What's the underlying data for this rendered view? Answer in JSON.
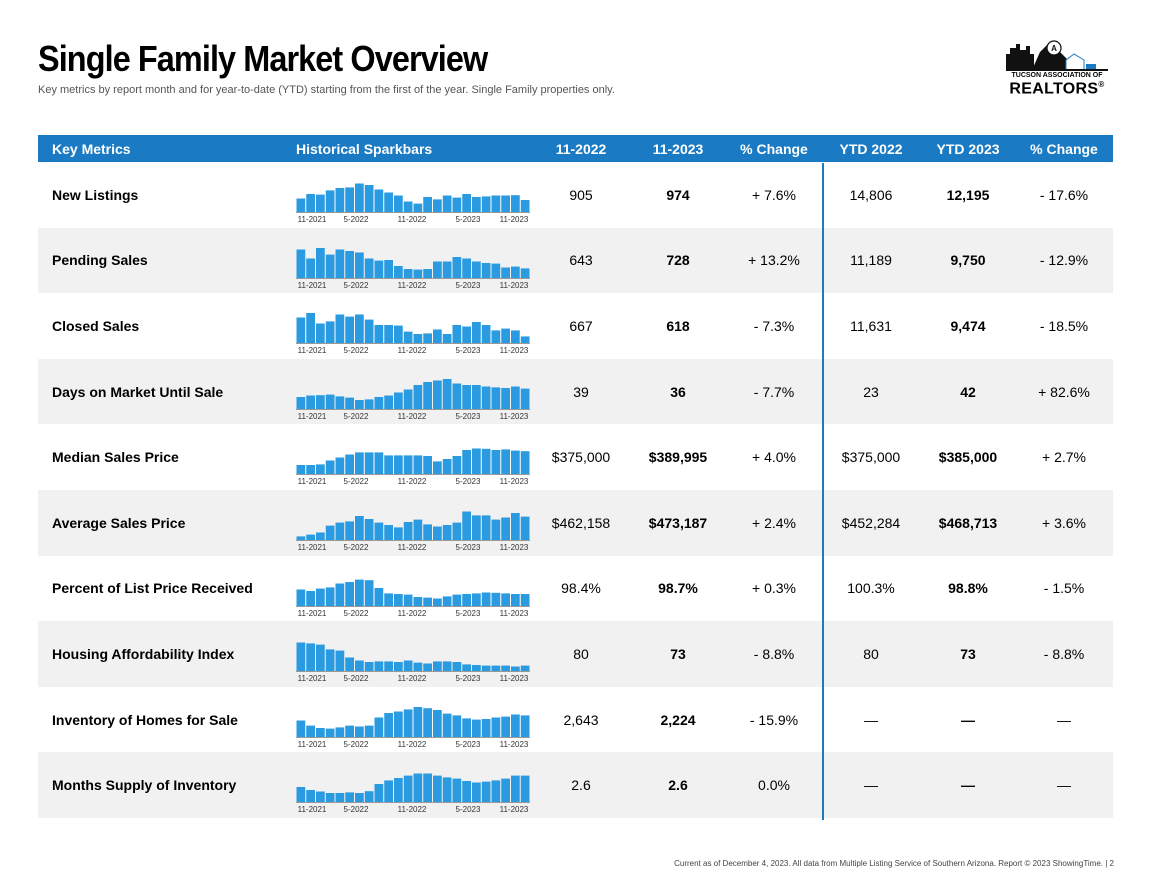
{
  "header": {
    "title": "Single Family Market Overview",
    "subtitle": "Key metrics by report month and for year-to-date (YTD) starting from the first of the year. Single Family properties only."
  },
  "logo": {
    "line1": "TUCSON ASSOCIATION OF",
    "line2": "REALTORS",
    "reg": "®",
    "icon": "city-skyline-logo-icon"
  },
  "table": {
    "columns": [
      "Key Metrics",
      "Historical Sparkbars",
      "11-2022",
      "11-2023",
      "% Change",
      "YTD 2022",
      "YTD 2023",
      "% Change"
    ],
    "spark_labels": [
      "11-2021",
      "5-2022",
      "11-2022",
      "5-2023",
      "11-2023"
    ],
    "bar_color": "#2a9be0",
    "rows": [
      {
        "metric": "New Listings",
        "m2022": "905",
        "m2023": "974",
        "pct": "+ 7.6%",
        "ytd2022": "14,806",
        "ytd2023": "12,195",
        "ytd_pct": "- 17.6%",
        "bars": [
          0.45,
          0.6,
          0.58,
          0.72,
          0.8,
          0.82,
          0.95,
          0.9,
          0.75,
          0.65,
          0.55,
          0.35,
          0.28,
          0.5,
          0.42,
          0.55,
          0.48,
          0.6,
          0.5,
          0.52,
          0.55,
          0.55,
          0.56,
          0.4
        ]
      },
      {
        "metric": "Pending Sales",
        "m2022": "643",
        "m2023": "728",
        "pct": "+ 13.2%",
        "ytd2022": "11,189",
        "ytd2023": "9,750",
        "ytd_pct": "- 12.9%",
        "bars": [
          0.95,
          0.65,
          1.0,
          0.78,
          0.95,
          0.9,
          0.85,
          0.65,
          0.58,
          0.6,
          0.4,
          0.3,
          0.28,
          0.3,
          0.55,
          0.55,
          0.7,
          0.65,
          0.55,
          0.5,
          0.48,
          0.35,
          0.38,
          0.32
        ]
      },
      {
        "metric": "Closed Sales",
        "m2022": "667",
        "m2023": "618",
        "pct": "- 7.3%",
        "ytd2022": "11,631",
        "ytd2023": "9,474",
        "ytd_pct": "- 18.5%",
        "bars": [
          0.85,
          1.0,
          0.65,
          0.72,
          0.95,
          0.88,
          0.95,
          0.78,
          0.6,
          0.6,
          0.58,
          0.38,
          0.3,
          0.32,
          0.45,
          0.3,
          0.6,
          0.55,
          0.7,
          0.6,
          0.42,
          0.48,
          0.42,
          0.22
        ]
      },
      {
        "metric": "Days on Market Until Sale",
        "m2022": "39",
        "m2023": "36",
        "pct": "- 7.7%",
        "ytd2022": "23",
        "ytd2023": "42",
        "ytd_pct": "+ 82.6%",
        "bars": [
          0.4,
          0.45,
          0.46,
          0.48,
          0.42,
          0.38,
          0.3,
          0.32,
          0.4,
          0.45,
          0.55,
          0.65,
          0.8,
          0.9,
          0.95,
          1.0,
          0.85,
          0.8,
          0.8,
          0.75,
          0.72,
          0.7,
          0.75,
          0.68
        ]
      },
      {
        "metric": "Median Sales Price",
        "m2022": "$375,000",
        "m2023": "$389,995",
        "pct": "+ 4.0%",
        "ytd2022": "$375,000",
        "ytd2023": "$385,000",
        "ytd_pct": "+ 2.7%",
        "bars": [
          0.3,
          0.3,
          0.32,
          0.45,
          0.55,
          0.65,
          0.72,
          0.72,
          0.72,
          0.62,
          0.62,
          0.62,
          0.62,
          0.6,
          0.42,
          0.5,
          0.6,
          0.8,
          0.85,
          0.84,
          0.8,
          0.82,
          0.78,
          0.76
        ]
      },
      {
        "metric": "Average Sales Price",
        "m2022": "$462,158",
        "m2023": "$473,187",
        "pct": "+ 2.4%",
        "ytd2022": "$452,284",
        "ytd2023": "$468,713",
        "ytd_pct": "+ 3.6%",
        "bars": [
          0.12,
          0.18,
          0.25,
          0.48,
          0.58,
          0.62,
          0.8,
          0.7,
          0.58,
          0.5,
          0.42,
          0.6,
          0.68,
          0.52,
          0.45,
          0.5,
          0.58,
          0.95,
          0.82,
          0.82,
          0.68,
          0.75,
          0.9,
          0.78
        ]
      },
      {
        "metric": "Percent of List Price Received",
        "m2022": "98.4%",
        "m2023": "98.7%",
        "pct": "+ 0.3%",
        "ytd2022": "100.3%",
        "ytd2023": "98.8%",
        "ytd_pct": "- 1.5%",
        "bars": [
          0.55,
          0.5,
          0.58,
          0.62,
          0.75,
          0.8,
          0.88,
          0.86,
          0.6,
          0.42,
          0.4,
          0.38,
          0.3,
          0.28,
          0.25,
          0.32,
          0.38,
          0.4,
          0.42,
          0.45,
          0.44,
          0.42,
          0.4,
          0.4
        ]
      },
      {
        "metric": "Housing Affordability Index",
        "m2022": "80",
        "m2023": "73",
        "pct": "- 8.8%",
        "ytd2022": "80",
        "ytd2023": "73",
        "ytd_pct": "- 8.8%",
        "bars": [
          0.95,
          0.92,
          0.88,
          0.72,
          0.68,
          0.45,
          0.35,
          0.3,
          0.32,
          0.32,
          0.3,
          0.35,
          0.28,
          0.25,
          0.32,
          0.32,
          0.3,
          0.22,
          0.2,
          0.18,
          0.18,
          0.18,
          0.15,
          0.18
        ]
      },
      {
        "metric": "Inventory of Homes for Sale",
        "m2022": "2,643",
        "m2023": "2,224",
        "pct": "- 15.9%",
        "ytd2022": "—",
        "ytd2023": "—",
        "ytd_pct": "—",
        "bars": [
          0.55,
          0.38,
          0.3,
          0.28,
          0.32,
          0.38,
          0.35,
          0.38,
          0.65,
          0.8,
          0.85,
          0.92,
          1.0,
          0.96,
          0.9,
          0.78,
          0.72,
          0.62,
          0.58,
          0.6,
          0.65,
          0.68,
          0.75,
          0.72
        ]
      },
      {
        "metric": "Months Supply of Inventory",
        "m2022": "2.6",
        "m2023": "2.6",
        "pct": "0.0%",
        "ytd2022": "—",
        "ytd2023": "—",
        "ytd_pct": "—",
        "bars": [
          0.5,
          0.4,
          0.35,
          0.3,
          0.3,
          0.32,
          0.3,
          0.36,
          0.6,
          0.72,
          0.8,
          0.88,
          0.95,
          0.95,
          0.88,
          0.82,
          0.78,
          0.7,
          0.65,
          0.68,
          0.72,
          0.78,
          0.88,
          0.88
        ]
      }
    ]
  },
  "footer": "Current as of December 4, 2023. All data from Multiple Listing Service of Southern Arizona. Report © 2023 ShowingTime.  |  2"
}
